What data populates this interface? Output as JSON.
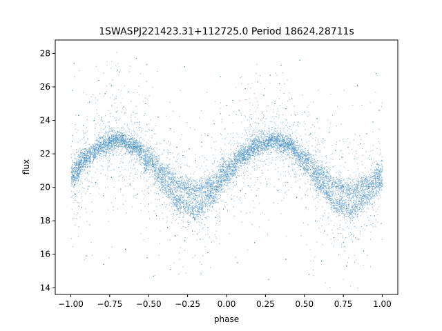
{
  "chart_data": {
    "type": "scatter",
    "title": "1SWASPJ221423.31+112725.0 Period 18624.28711s",
    "xlabel": "phase",
    "ylabel": "flux",
    "xlim": [
      -1.1,
      1.1
    ],
    "ylim": [
      13.6,
      28.8
    ],
    "x_ticks": [
      -1.0,
      -0.75,
      -0.5,
      -0.25,
      0.0,
      0.25,
      0.5,
      0.75,
      1.0
    ],
    "x_tick_labels": [
      "−1.00",
      "−0.75",
      "−0.50",
      "−0.25",
      "0.00",
      "0.25",
      "0.50",
      "0.75",
      "1.00"
    ],
    "y_ticks": [
      14,
      16,
      18,
      20,
      22,
      24,
      26,
      28
    ],
    "y_tick_labels": [
      "14",
      "16",
      "18",
      "20",
      "22",
      "24",
      "26",
      "28"
    ],
    "grid": false,
    "marker_color": "#1f77b4",
    "series": [
      {
        "x": [
          -1.0,
          -0.9,
          -0.8,
          -0.7,
          -0.6,
          -0.5,
          -0.4,
          -0.3,
          -0.2,
          -0.1,
          0.0,
          0.1,
          0.2,
          0.3,
          0.4,
          0.5,
          0.6,
          0.7,
          0.8,
          0.9,
          1.0
        ],
        "y": [
          21.0,
          21.9,
          22.6,
          22.9,
          22.6,
          21.8,
          20.9,
          20.1,
          19.8,
          20.2,
          21.2,
          22.0,
          22.6,
          22.9,
          22.6,
          21.8,
          20.9,
          20.1,
          19.8,
          20.2,
          21.0
        ]
      },
      {
        "x": [
          -1.0,
          -0.9,
          -0.8,
          -0.7,
          -0.6,
          -0.5,
          -0.4,
          -0.3,
          -0.2,
          -0.1,
          0.0,
          0.1,
          0.2,
          0.3,
          0.4,
          0.5,
          0.6,
          0.7,
          0.8,
          0.9,
          1.0
        ],
        "y": [
          20.4,
          21.6,
          22.4,
          22.8,
          22.4,
          21.3,
          20.1,
          19.0,
          18.6,
          19.4,
          20.6,
          21.7,
          22.4,
          22.8,
          22.4,
          21.3,
          20.1,
          19.0,
          18.6,
          19.4,
          20.4
        ]
      }
    ],
    "scatter_points": [
      [
        -0.99,
        25.8
      ],
      [
        -0.95,
        24.3
      ],
      [
        -0.92,
        23.7
      ],
      [
        -0.88,
        25.1
      ],
      [
        -0.85,
        24.0
      ],
      [
        -0.82,
        26.4
      ],
      [
        -0.78,
        25.6
      ],
      [
        -0.74,
        26.1
      ],
      [
        -0.71,
        25.3
      ],
      [
        -0.69,
        26.9
      ],
      [
        -0.66,
        24.8
      ],
      [
        -0.63,
        25.7
      ],
      [
        -0.6,
        24.5
      ],
      [
        -0.56,
        23.9
      ],
      [
        -0.52,
        25.0
      ],
      [
        -0.48,
        23.4
      ],
      [
        -0.44,
        24.2
      ],
      [
        -0.4,
        22.8
      ],
      [
        -0.36,
        23.5
      ],
      [
        -0.32,
        22.4
      ],
      [
        -0.28,
        21.9
      ],
      [
        -0.24,
        22.3
      ],
      [
        -0.2,
        21.6
      ],
      [
        -0.16,
        22.7
      ],
      [
        -0.12,
        23.1
      ],
      [
        -0.08,
        23.8
      ],
      [
        -0.04,
        24.4
      ],
      [
        0.0,
        24.9
      ],
      [
        0.04,
        25.2
      ],
      [
        0.08,
        24.6
      ],
      [
        0.12,
        25.9
      ],
      [
        0.16,
        24.1
      ],
      [
        0.2,
        26.3
      ],
      [
        0.24,
        25.5
      ],
      [
        0.28,
        26.7
      ],
      [
        0.31,
        25.0
      ],
      [
        0.34,
        26.2
      ],
      [
        0.38,
        24.7
      ],
      [
        0.42,
        25.3
      ],
      [
        0.46,
        23.9
      ],
      [
        0.5,
        24.5
      ],
      [
        0.54,
        23.2
      ],
      [
        0.58,
        24.1
      ],
      [
        0.62,
        22.9
      ],
      [
        0.66,
        23.3
      ],
      [
        0.7,
        22.2
      ],
      [
        0.74,
        21.8
      ],
      [
        0.78,
        22.4
      ],
      [
        0.82,
        21.7
      ],
      [
        0.86,
        22.6
      ],
      [
        0.9,
        23.2
      ],
      [
        0.94,
        23.9
      ],
      [
        0.98,
        24.6
      ],
      [
        -0.97,
        19.6
      ],
      [
        -0.93,
        18.8
      ],
      [
        -0.89,
        19.9
      ],
      [
        -0.84,
        20.3
      ],
      [
        -0.79,
        19.5
      ],
      [
        -0.74,
        20.6
      ],
      [
        -0.68,
        19.9
      ],
      [
        -0.62,
        20.2
      ],
      [
        -0.57,
        19.6
      ],
      [
        -0.5,
        19.0
      ],
      [
        -0.45,
        18.3
      ],
      [
        -0.38,
        17.6
      ],
      [
        -0.33,
        17.1
      ],
      [
        -0.27,
        16.8
      ],
      [
        -0.22,
        17.4
      ],
      [
        -0.17,
        16.9
      ],
      [
        -0.12,
        17.6
      ],
      [
        -0.07,
        18.2
      ],
      [
        -0.02,
        18.7
      ],
      [
        0.03,
        19.3
      ],
      [
        0.09,
        19.8
      ],
      [
        0.14,
        20.1
      ],
      [
        0.19,
        19.5
      ],
      [
        0.26,
        20.2
      ],
      [
        0.33,
        19.8
      ],
      [
        0.39,
        20.3
      ],
      [
        0.45,
        19.4
      ],
      [
        0.51,
        18.8
      ],
      [
        0.57,
        18.0
      ],
      [
        0.63,
        17.4
      ],
      [
        0.69,
        17.0
      ],
      [
        0.75,
        16.7
      ],
      [
        0.8,
        17.2
      ],
      [
        0.85,
        16.9
      ],
      [
        0.9,
        17.7
      ],
      [
        0.95,
        18.3
      ],
      [
        -0.9,
        15.9
      ],
      [
        -0.79,
        15.4
      ],
      [
        -0.65,
        16.3
      ],
      [
        -0.51,
        15.8
      ],
      [
        -0.36,
        15.1
      ],
      [
        -0.12,
        16.1
      ],
      [
        0.07,
        15.5
      ],
      [
        0.18,
        16.7
      ],
      [
        0.38,
        15.7
      ],
      [
        0.53,
        14.8
      ],
      [
        0.61,
        15.6
      ],
      [
        0.77,
        15.3
      ],
      [
        0.88,
        16.2
      ],
      [
        -0.47,
        14.7
      ],
      [
        0.27,
        14.5
      ],
      [
        -0.27,
        27.2
      ],
      [
        0.35,
        27.3
      ],
      [
        -0.7,
        27.0
      ],
      [
        0.84,
        26.1
      ],
      [
        -0.04,
        26.6
      ],
      [
        0.96,
        26.8
      ],
      [
        -0.58,
        27.7
      ],
      [
        0.47,
        27.6
      ],
      [
        -0.98,
        27.4
      ]
    ]
  }
}
